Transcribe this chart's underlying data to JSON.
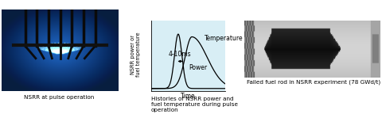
{
  "panel1_caption": "NSRR at pulse operation",
  "panel2_caption": "Histories of NSRR power and\nfuel temperature during pulse\noperation",
  "panel2_xlabel": "Time",
  "panel2_ylabel": "NSRR power or\nfuel temperature",
  "panel2_label_temp": "Temperature",
  "panel2_label_power": "Power",
  "panel2_annotation": "4-10ms",
  "panel3_caption": "Failed fuel rod in NSRR experiment (78 GWd/t)",
  "plot_bg": "#d8eef5",
  "caption_fontsize": 5.2,
  "label_fontsize": 5.5,
  "ylabel_fontsize": 4.8
}
